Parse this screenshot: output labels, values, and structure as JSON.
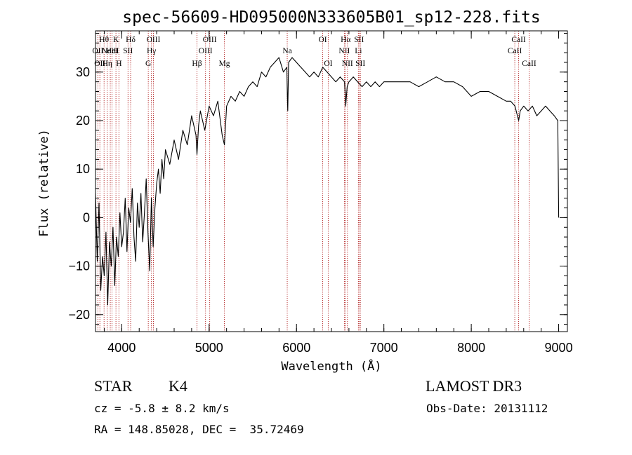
{
  "chart_data": {
    "type": "line",
    "title": "spec-56609-HD095000N333605B01_sp12-228.fits",
    "xlabel": "Wavelength (Å)",
    "ylabel": "Flux (relative)",
    "xlim": [
      3700,
      9100
    ],
    "ylim": [
      -23.5,
      38.5
    ],
    "xticks": [
      4000,
      5000,
      6000,
      7000,
      8000,
      9000
    ],
    "yticks": [
      -20,
      -10,
      0,
      10,
      20,
      30
    ],
    "x_minor_step": 200,
    "y_minor_step": 2,
    "series": [
      {
        "name": "spectrum",
        "x": [
          3700,
          3720,
          3740,
          3760,
          3780,
          3800,
          3820,
          3840,
          3860,
          3880,
          3900,
          3920,
          3940,
          3960,
          3980,
          4000,
          4020,
          4040,
          4060,
          4080,
          4100,
          4120,
          4140,
          4160,
          4180,
          4200,
          4220,
          4240,
          4260,
          4280,
          4300,
          4320,
          4340,
          4360,
          4380,
          4400,
          4420,
          4440,
          4460,
          4480,
          4500,
          4550,
          4600,
          4650,
          4700,
          4750,
          4800,
          4850,
          4861,
          4880,
          4900,
          4950,
          5000,
          5050,
          5100,
          5150,
          5175,
          5200,
          5250,
          5300,
          5350,
          5400,
          5450,
          5500,
          5550,
          5600,
          5650,
          5700,
          5750,
          5800,
          5850,
          5890,
          5895,
          5900,
          5910,
          5950,
          6000,
          6050,
          6100,
          6150,
          6200,
          6250,
          6300,
          6350,
          6400,
          6450,
          6500,
          6550,
          6563,
          6580,
          6600,
          6650,
          6700,
          6750,
          6800,
          6850,
          6900,
          6950,
          7000,
          7100,
          7200,
          7300,
          7400,
          7500,
          7600,
          7700,
          7800,
          7900,
          8000,
          8100,
          8200,
          8300,
          8400,
          8450,
          8500,
          8542,
          8560,
          8600,
          8650,
          8700,
          8750,
          8800,
          8850,
          8900,
          8950,
          8990,
          9000
        ],
        "y": [
          5,
          -9,
          3,
          -15,
          -8,
          -12,
          -3,
          -18,
          -5,
          -10,
          -2,
          -14,
          -4,
          -8,
          1,
          -6,
          -3,
          4,
          -7,
          2,
          -1,
          6,
          -4,
          -9,
          3,
          -2,
          5,
          -5,
          1,
          8,
          -3,
          -11,
          4,
          -6,
          2,
          7,
          10,
          5,
          12,
          8,
          14,
          11,
          16,
          12,
          18,
          15,
          21,
          17,
          13,
          19,
          22,
          18,
          23,
          21,
          24,
          17,
          15,
          23,
          25,
          24,
          26,
          25,
          27,
          28,
          27,
          30,
          29,
          31,
          32,
          33,
          30,
          31,
          25,
          22,
          32,
          33,
          32,
          31,
          30,
          29,
          30,
          29,
          31,
          30,
          29,
          28,
          29,
          28,
          23,
          27,
          28,
          29,
          28,
          27,
          28,
          27,
          28,
          27,
          28,
          28,
          28,
          28,
          27,
          28,
          29,
          28,
          28,
          27,
          25,
          26,
          26,
          25,
          24,
          24,
          23,
          20,
          22,
          23,
          22,
          23,
          21,
          22,
          23,
          22,
          21,
          20,
          0
        ]
      }
    ],
    "lines": [
      {
        "x": 3727,
        "label": "OII",
        "row": 1
      },
      {
        "x": 3750,
        "label": "OII",
        "row": 2
      },
      {
        "x": 3798,
        "label": "Hθ",
        "row": 0
      },
      {
        "x": 3835,
        "label": "Hη",
        "row": 2
      },
      {
        "x": 3869,
        "label": "NeIII",
        "row": 1
      },
      {
        "x": 3889,
        "label": "HeI",
        "row": 1
      },
      {
        "x": 3934,
        "label": "K",
        "row": 0
      },
      {
        "x": 3968,
        "label": "H",
        "row": 2
      },
      {
        "x": 4072,
        "label": "SII",
        "row": 1
      },
      {
        "x": 4102,
        "label": "Hδ",
        "row": 0
      },
      {
        "x": 4304,
        "label": "G",
        "row": 2
      },
      {
        "x": 4340,
        "label": "Hγ",
        "row": 1
      },
      {
        "x": 4363,
        "label": "OIII",
        "row": 0
      },
      {
        "x": 4861,
        "label": "Hβ",
        "row": 2
      },
      {
        "x": 4959,
        "label": "OIII",
        "row": 1
      },
      {
        "x": 5007,
        "label": "OIII",
        "row": 0
      },
      {
        "x": 5175,
        "label": "Mg",
        "row": 2
      },
      {
        "x": 5894,
        "label": "Na",
        "row": 1
      },
      {
        "x": 6300,
        "label": "OI",
        "row": 0
      },
      {
        "x": 6363,
        "label": "OI",
        "row": 2
      },
      {
        "x": 6548,
        "label": "NII",
        "row": 1
      },
      {
        "x": 6563,
        "label": "Hα",
        "row": 0
      },
      {
        "x": 6583,
        "label": "NII",
        "row": 2
      },
      {
        "x": 6708,
        "label": "Li",
        "row": 1
      },
      {
        "x": 6716,
        "label": "SII",
        "row": 0
      },
      {
        "x": 6731,
        "label": "SII",
        "row": 2
      },
      {
        "x": 8498,
        "label": "CaII",
        "row": 1
      },
      {
        "x": 8542,
        "label": "CaII",
        "row": 0
      },
      {
        "x": 8662,
        "label": "CaII",
        "row": 2
      }
    ]
  },
  "footer": {
    "class_label": "STAR",
    "subclass": "K4",
    "survey": "LAMOST DR3",
    "cz": "cz = -5.8 ± 8.2 km/s",
    "obs_date": "Obs-Date: 20131112",
    "coords": "RA = 148.85028, DEC =  35.72469"
  },
  "colors": {
    "line_marker": "#b22222",
    "spectrum": "#000000",
    "axis": "#000000"
  }
}
